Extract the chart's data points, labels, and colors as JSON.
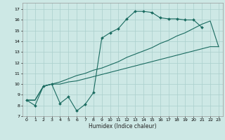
{
  "title": "",
  "xlabel": "Humidex (Indice chaleur)",
  "bg_color": "#cde8e5",
  "grid_color": "#aacfcc",
  "line_color": "#1a6b60",
  "xlim": [
    -0.5,
    23.5
  ],
  "ylim": [
    7,
    17.6
  ],
  "xticks": [
    0,
    1,
    2,
    3,
    4,
    5,
    6,
    7,
    8,
    9,
    10,
    11,
    12,
    13,
    14,
    15,
    16,
    17,
    18,
    19,
    20,
    21,
    22,
    23
  ],
  "yticks": [
    7,
    8,
    9,
    10,
    11,
    12,
    13,
    14,
    15,
    16,
    17
  ],
  "line1_x": [
    0,
    1,
    2,
    3,
    4,
    5,
    6,
    7,
    8,
    9,
    10,
    11,
    12,
    13,
    14,
    15,
    16,
    17,
    18,
    19,
    20,
    21
  ],
  "line1_y": [
    8.5,
    8.0,
    9.8,
    10.0,
    8.2,
    8.8,
    7.5,
    8.1,
    9.2,
    14.3,
    14.8,
    15.2,
    16.1,
    16.8,
    16.8,
    16.7,
    16.2,
    16.1,
    16.1,
    16.0,
    16.0,
    15.3
  ],
  "line2_x": [
    0,
    1,
    2,
    3,
    4,
    5,
    6,
    7,
    8,
    9,
    10,
    11,
    12,
    13,
    14,
    15,
    16,
    17,
    18,
    19,
    20,
    21,
    22,
    23
  ],
  "line2_y": [
    8.5,
    8.5,
    9.8,
    10.0,
    10.2,
    10.5,
    10.8,
    11.0,
    11.3,
    11.5,
    11.8,
    12.1,
    12.5,
    12.8,
    13.1,
    13.4,
    13.8,
    14.1,
    14.5,
    14.8,
    15.2,
    15.6,
    15.9,
    13.5
  ],
  "line3_x": [
    0,
    1,
    2,
    3,
    4,
    5,
    6,
    7,
    8,
    9,
    10,
    11,
    12,
    13,
    14,
    15,
    16,
    17,
    18,
    19,
    20,
    21,
    22,
    23
  ],
  "line3_y": [
    8.5,
    8.5,
    9.8,
    10.0,
    10.0,
    10.2,
    10.3,
    10.5,
    10.7,
    10.9,
    11.1,
    11.3,
    11.5,
    11.7,
    11.9,
    12.1,
    12.3,
    12.5,
    12.7,
    12.9,
    13.1,
    13.3,
    13.5,
    13.5
  ]
}
